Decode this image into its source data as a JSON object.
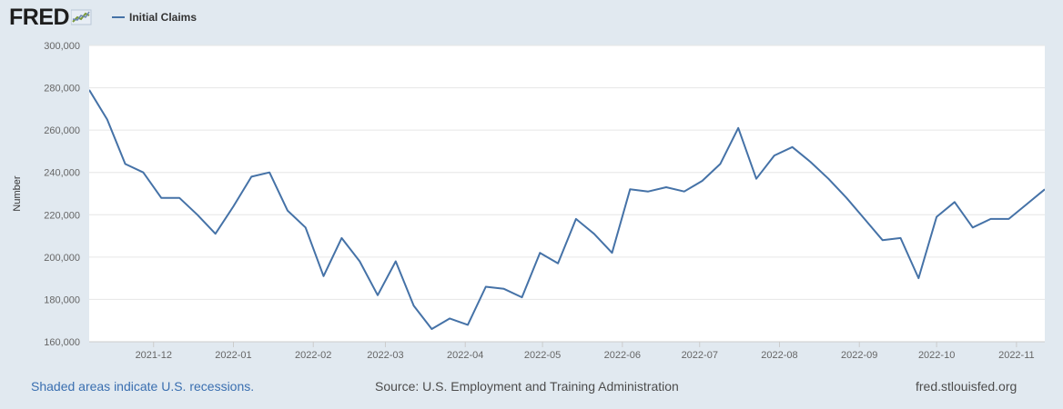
{
  "header": {
    "logo_text": "FRED",
    "legend_label": "Initial Claims"
  },
  "colors": {
    "line": "#4572a7",
    "plot_background": "#ffffff",
    "page_background": "#e1e9f0",
    "grid": "#e6e6e6"
  },
  "chart_data": {
    "type": "line",
    "ylabel": "Number",
    "xlabel": "",
    "ylim": [
      160000,
      300000
    ],
    "xlim": [
      "2021-11-06",
      "2022-11-12"
    ],
    "y_ticks": [
      160000,
      180000,
      200000,
      220000,
      240000,
      260000,
      280000,
      300000
    ],
    "y_tick_labels": [
      "160,000",
      "180,000",
      "200,000",
      "220,000",
      "240,000",
      "260,000",
      "280,000",
      "300,000"
    ],
    "x_ticks": [
      "2021-12-01",
      "2022-01-01",
      "2022-02-01",
      "2022-03-01",
      "2022-04-01",
      "2022-05-01",
      "2022-06-01",
      "2022-07-01",
      "2022-08-01",
      "2022-09-01",
      "2022-10-01",
      "2022-11-01"
    ],
    "x_tick_labels": [
      "2021-12",
      "2022-01",
      "2022-02",
      "2022-03",
      "2022-04",
      "2022-05",
      "2022-06",
      "2022-07",
      "2022-08",
      "2022-09",
      "2022-10",
      "2022-11"
    ],
    "grid": true,
    "legend": "top-left",
    "series": [
      {
        "name": "Initial Claims",
        "x": [
          "2021-11-06",
          "2021-11-13",
          "2021-11-20",
          "2021-11-27",
          "2021-12-04",
          "2021-12-11",
          "2021-12-18",
          "2021-12-25",
          "2022-01-01",
          "2022-01-08",
          "2022-01-15",
          "2022-01-22",
          "2022-01-29",
          "2022-02-05",
          "2022-02-12",
          "2022-02-19",
          "2022-02-26",
          "2022-03-05",
          "2022-03-12",
          "2022-03-19",
          "2022-03-26",
          "2022-04-02",
          "2022-04-09",
          "2022-04-16",
          "2022-04-23",
          "2022-04-30",
          "2022-05-07",
          "2022-05-14",
          "2022-05-21",
          "2022-05-28",
          "2022-06-04",
          "2022-06-11",
          "2022-06-18",
          "2022-06-25",
          "2022-07-02",
          "2022-07-09",
          "2022-07-16",
          "2022-07-23",
          "2022-07-30",
          "2022-08-06",
          "2022-08-13",
          "2022-08-20",
          "2022-08-27",
          "2022-09-03",
          "2022-09-10",
          "2022-09-17",
          "2022-09-24",
          "2022-10-01",
          "2022-10-08",
          "2022-10-15",
          "2022-10-22",
          "2022-10-29",
          "2022-11-05",
          "2022-11-12"
        ],
        "values": [
          279000,
          265000,
          244000,
          240000,
          228000,
          228000,
          220000,
          211000,
          224000,
          238000,
          240000,
          222000,
          214000,
          191000,
          209000,
          198000,
          182000,
          198000,
          177000,
          166000,
          171000,
          168000,
          186000,
          185000,
          181000,
          202000,
          197000,
          218000,
          211000,
          202000,
          232000,
          231000,
          233000,
          231000,
          236000,
          244000,
          261000,
          237000,
          248000,
          252000,
          245000,
          237000,
          228000,
          218000,
          208000,
          209000,
          190000,
          219000,
          226000,
          214000,
          218000,
          218000,
          225000,
          232000
        ]
      }
    ]
  },
  "footer": {
    "recession_note": "Shaded areas indicate U.S. recessions.",
    "source": "Source: U.S. Employment and Training Administration",
    "site": "fred.stlouisfed.org"
  }
}
